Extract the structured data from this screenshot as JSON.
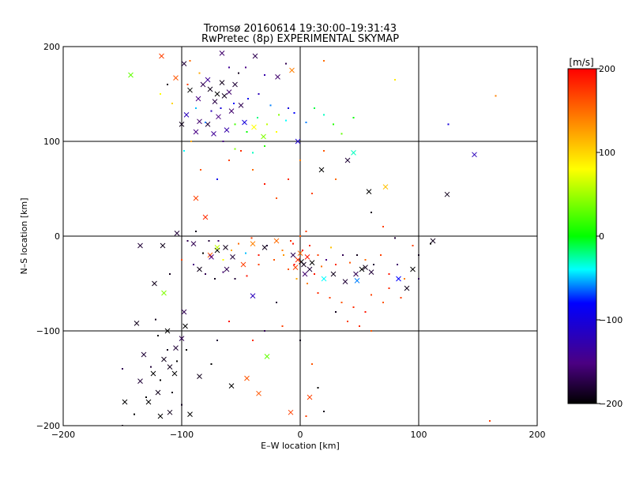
{
  "chart_data": {
    "type": "scatter",
    "title": "Tromsø 20160614 19:30:00–19:31:43",
    "subtitle": "RwPretec (8p) EXPERIMENTAL SKYMAP",
    "xlabel": "E–W location [km]",
    "ylabel": "N–S location [km]",
    "xlim": [
      -200,
      200
    ],
    "ylim": [
      -200,
      200
    ],
    "x_ticks": [
      -200,
      -100,
      0,
      100,
      200
    ],
    "y_ticks": [
      -200,
      -100,
      0,
      100,
      200
    ],
    "x_tick_labels": [
      "−200",
      "−100",
      "0",
      "100",
      "200"
    ],
    "y_tick_labels": [
      "−200",
      "−100",
      "0",
      "100",
      "200"
    ],
    "grid": true,
    "colorbar": {
      "label": "[m/s]",
      "range": [
        -200,
        200
      ],
      "ticks": [
        200,
        100,
        0,
        -100,
        -200
      ],
      "tick_labels": [
        "200",
        "100",
        "0",
        "−100",
        "−200"
      ],
      "colormap": [
        "#000000",
        "#4b0082",
        "#0000ff",
        "#00ffff",
        "#00ff00",
        "#ffff00",
        "#ff8000",
        "#ff0000"
      ]
    },
    "markers": {
      "large": "x",
      "small": "dot"
    },
    "points": [
      [
        -117,
        190,
        170,
        "x"
      ],
      [
        -143,
        170,
        30,
        "x"
      ],
      [
        -105,
        167,
        160,
        "x"
      ],
      [
        -98,
        182,
        -180,
        "x"
      ],
      [
        -66,
        193,
        -160,
        "x"
      ],
      [
        -38,
        190,
        -170,
        "x"
      ],
      [
        -19,
        168,
        -160,
        "x"
      ],
      [
        -7,
        175,
        140,
        "x"
      ],
      [
        -82,
        160,
        -170,
        "x"
      ],
      [
        -76,
        155,
        -190,
        "x"
      ],
      [
        -70,
        150,
        -200,
        "x"
      ],
      [
        -64,
        148,
        -190,
        "x"
      ],
      [
        -72,
        142,
        -175,
        "x"
      ],
      [
        -60,
        152,
        -160,
        "x"
      ],
      [
        -86,
        145,
        -150,
        "x"
      ],
      [
        -55,
        160,
        -180,
        "x"
      ],
      [
        -78,
        165,
        -140,
        "x"
      ],
      [
        -66,
        162,
        -190,
        "x"
      ],
      [
        -96,
        128,
        -120,
        "x"
      ],
      [
        -85,
        121,
        -160,
        "x"
      ],
      [
        -78,
        118,
        -180,
        "x"
      ],
      [
        -69,
        126,
        -150,
        "x"
      ],
      [
        -58,
        132,
        -160,
        "x"
      ],
      [
        -50,
        138,
        -170,
        "x"
      ],
      [
        -88,
        110,
        -150,
        "x"
      ],
      [
        -73,
        108,
        -140,
        "x"
      ],
      [
        -62,
        112,
        -130,
        "x"
      ],
      [
        -47,
        120,
        -100,
        "x"
      ],
      [
        -39,
        115,
        80,
        "x"
      ],
      [
        -31,
        105,
        40,
        "x"
      ],
      [
        -100,
        118,
        -190,
        "x"
      ],
      [
        -93,
        154,
        -200,
        "x"
      ],
      [
        -135,
        -10,
        -180,
        "x"
      ],
      [
        -116,
        -10,
        -190,
        "x"
      ],
      [
        -104,
        3,
        -180,
        "x"
      ],
      [
        -90,
        -8,
        -170,
        "x"
      ],
      [
        -76,
        -20,
        160,
        "x"
      ],
      [
        -70,
        -15,
        -200,
        "x"
      ],
      [
        -63,
        -12,
        -190,
        "x"
      ],
      [
        -57,
        -22,
        -180,
        "x"
      ],
      [
        -48,
        -30,
        170,
        "x"
      ],
      [
        -85,
        -35,
        -190,
        "x"
      ],
      [
        -62,
        -35,
        -170,
        "x"
      ],
      [
        -40,
        -63,
        -120,
        "x"
      ],
      [
        -115,
        -60,
        40,
        "x"
      ],
      [
        -123,
        -50,
        -190,
        "x"
      ],
      [
        -98,
        -80,
        -170,
        "x"
      ],
      [
        -112,
        -100,
        -200,
        "x"
      ],
      [
        -105,
        -118,
        -180,
        "x"
      ],
      [
        -115,
        -130,
        -190,
        "x"
      ],
      [
        -124,
        -145,
        -200,
        "x"
      ],
      [
        -120,
        -165,
        -190,
        "x"
      ],
      [
        -128,
        -175,
        -200,
        "x"
      ],
      [
        -135,
        -153,
        -180,
        "x"
      ],
      [
        -148,
        -175,
        -200,
        "x"
      ],
      [
        -110,
        -186,
        -190,
        "x"
      ],
      [
        -118,
        -190,
        -200,
        "x"
      ],
      [
        -100,
        -108,
        -170,
        "x"
      ],
      [
        -97,
        -95,
        -200,
        "x"
      ],
      [
        -138,
        -92,
        -190,
        "x"
      ],
      [
        -132,
        -125,
        -180,
        "x"
      ],
      [
        -106,
        -145,
        -200,
        "x"
      ],
      [
        1,
        -27,
        -200,
        "x"
      ],
      [
        3,
        -30,
        -190,
        "x"
      ],
      [
        -2,
        -25,
        180,
        "x"
      ],
      [
        6,
        -22,
        190,
        "x"
      ],
      [
        -4,
        -33,
        170,
        "x"
      ],
      [
        8,
        -35,
        -180,
        "x"
      ],
      [
        0,
        -18,
        150,
        "x"
      ],
      [
        10,
        -28,
        -200,
        "x"
      ],
      [
        -6,
        -20,
        -170,
        "x"
      ],
      [
        4,
        -40,
        -160,
        "x"
      ],
      [
        20,
        -45,
        -40,
        "x"
      ],
      [
        28,
        -40,
        -190,
        "x"
      ],
      [
        38,
        -48,
        -180,
        "x"
      ],
      [
        47,
        -40,
        -170,
        "x"
      ],
      [
        52,
        -35,
        -200,
        "x"
      ],
      [
        55,
        -33,
        -190,
        "x"
      ],
      [
        60,
        -38,
        -180,
        "x"
      ],
      [
        48,
        -47,
        -60,
        "x"
      ],
      [
        58,
        47,
        -200,
        "x"
      ],
      [
        72,
        52,
        110,
        "x"
      ],
      [
        124,
        44,
        -190,
        "x"
      ],
      [
        147,
        86,
        -120,
        "x"
      ],
      [
        18,
        70,
        -200,
        "x"
      ],
      [
        40,
        80,
        -180,
        "x"
      ],
      [
        45,
        88,
        -30,
        "x"
      ],
      [
        -2,
        100,
        -110,
        "x"
      ],
      [
        -88,
        40,
        170,
        "x"
      ],
      [
        -80,
        20,
        180,
        "x"
      ],
      [
        -70,
        -12,
        60,
        "x"
      ],
      [
        -75,
        -22,
        -150,
        "x"
      ],
      [
        -40,
        -8,
        140,
        "x"
      ],
      [
        -30,
        -12,
        -190,
        "x"
      ],
      [
        -20,
        -5,
        150,
        "x"
      ],
      [
        -45,
        -150,
        160,
        "x"
      ],
      [
        -35,
        -166,
        160,
        "x"
      ],
      [
        -8,
        -186,
        170,
        "x"
      ],
      [
        -85,
        -148,
        -190,
        "x"
      ],
      [
        -93,
        -188,
        -200,
        "x"
      ],
      [
        -28,
        -127,
        30,
        "x"
      ],
      [
        -58,
        -158,
        -200,
        "x"
      ],
      [
        -110,
        -138,
        -190,
        "x"
      ],
      [
        8,
        -170,
        170,
        "x"
      ],
      [
        83,
        -45,
        -80,
        "x"
      ],
      [
        90,
        -55,
        -190,
        "x"
      ],
      [
        112,
        -5,
        -190,
        "x"
      ],
      [
        95,
        -35,
        -200,
        "x"
      ],
      [
        -93,
        185,
        150,
        "dot"
      ],
      [
        -85,
        172,
        120,
        "dot"
      ],
      [
        -46,
        178,
        -150,
        "dot"
      ],
      [
        -30,
        170,
        -130,
        "dot"
      ],
      [
        -12,
        182,
        -170,
        "dot"
      ],
      [
        -52,
        172,
        -190,
        "dot"
      ],
      [
        -60,
        178,
        -140,
        "dot"
      ],
      [
        -75,
        132,
        -120,
        "dot"
      ],
      [
        -67,
        135,
        -100,
        "dot"
      ],
      [
        -56,
        140,
        -80,
        "dot"
      ],
      [
        -44,
        145,
        -90,
        "dot"
      ],
      [
        -35,
        150,
        -120,
        "dot"
      ],
      [
        -25,
        138,
        -60,
        "dot"
      ],
      [
        -18,
        128,
        40,
        "dot"
      ],
      [
        -10,
        135,
        -100,
        "dot"
      ],
      [
        -55,
        118,
        20,
        "dot"
      ],
      [
        -45,
        110,
        0,
        "dot"
      ],
      [
        -36,
        125,
        -20,
        "dot"
      ],
      [
        -28,
        118,
        60,
        "dot"
      ],
      [
        -20,
        110,
        80,
        "dot"
      ],
      [
        -12,
        122,
        -40,
        "dot"
      ],
      [
        -5,
        130,
        -80,
        "dot"
      ],
      [
        5,
        120,
        -60,
        "dot"
      ],
      [
        12,
        135,
        -10,
        "dot"
      ],
      [
        20,
        128,
        -30,
        "dot"
      ],
      [
        28,
        118,
        10,
        "dot"
      ],
      [
        35,
        108,
        30,
        "dot"
      ],
      [
        45,
        125,
        0,
        "dot"
      ],
      [
        -88,
        135,
        -50,
        "dot"
      ],
      [
        -92,
        100,
        120,
        "dot"
      ],
      [
        -98,
        90,
        -40,
        "dot"
      ],
      [
        -84,
        70,
        160,
        "dot"
      ],
      [
        -70,
        60,
        -90,
        "dot"
      ],
      [
        -60,
        80,
        170,
        "dot"
      ],
      [
        -50,
        90,
        180,
        "dot"
      ],
      [
        -40,
        70,
        150,
        "dot"
      ],
      [
        -30,
        55,
        190,
        "dot"
      ],
      [
        -20,
        40,
        160,
        "dot"
      ],
      [
        -10,
        60,
        180,
        "dot"
      ],
      [
        0,
        80,
        140,
        "dot"
      ],
      [
        10,
        45,
        170,
        "dot"
      ],
      [
        20,
        90,
        160,
        "dot"
      ],
      [
        30,
        60,
        150,
        "dot"
      ],
      [
        -95,
        -5,
        -170,
        "dot"
      ],
      [
        -88,
        5,
        -190,
        "dot"
      ],
      [
        -82,
        -18,
        -200,
        "dot"
      ],
      [
        -77,
        -5,
        -180,
        "dot"
      ],
      [
        -69,
        -5,
        -160,
        "dot"
      ],
      [
        -65,
        -25,
        80,
        "dot"
      ],
      [
        -58,
        -15,
        120,
        "dot"
      ],
      [
        -52,
        -8,
        150,
        "dot"
      ],
      [
        -46,
        -18,
        -50,
        "dot"
      ],
      [
        -41,
        -2,
        170,
        "dot"
      ],
      [
        -35,
        -20,
        190,
        "dot"
      ],
      [
        -28,
        -10,
        -180,
        "dot"
      ],
      [
        -22,
        -25,
        160,
        "dot"
      ],
      [
        -15,
        -15,
        140,
        "dot"
      ],
      [
        -8,
        -5,
        180,
        "dot"
      ],
      [
        -100,
        -25,
        170,
        "dot"
      ],
      [
        -90,
        -30,
        -150,
        "dot"
      ],
      [
        -80,
        -40,
        -170,
        "dot"
      ],
      [
        -72,
        -45,
        -190,
        "dot"
      ],
      [
        -65,
        -38,
        -160,
        "dot"
      ],
      [
        -55,
        -45,
        -180,
        "dot"
      ],
      [
        -45,
        -42,
        190,
        "dot"
      ],
      [
        -35,
        -30,
        170,
        "dot"
      ],
      [
        -5,
        -30,
        200,
        "dot"
      ],
      [
        2,
        -15,
        190,
        "dot"
      ],
      [
        8,
        -10,
        180,
        "dot"
      ],
      [
        15,
        -20,
        170,
        "dot"
      ],
      [
        -10,
        -35,
        160,
        "dot"
      ],
      [
        12,
        -40,
        190,
        "dot"
      ],
      [
        18,
        -32,
        150,
        "dot"
      ],
      [
        -3,
        -45,
        120,
        "dot"
      ],
      [
        6,
        -50,
        140,
        "dot"
      ],
      [
        22,
        -25,
        -150,
        "dot"
      ],
      [
        26,
        -12,
        110,
        "dot"
      ],
      [
        -14,
        -20,
        130,
        "dot"
      ],
      [
        0,
        0,
        160,
        "dot"
      ],
      [
        5,
        5,
        170,
        "dot"
      ],
      [
        -6,
        -8,
        190,
        "dot"
      ],
      [
        30,
        -30,
        180,
        "dot"
      ],
      [
        36,
        -20,
        -170,
        "dot"
      ],
      [
        42,
        -28,
        160,
        "dot"
      ],
      [
        48,
        -20,
        -190,
        "dot"
      ],
      [
        55,
        -25,
        150,
        "dot"
      ],
      [
        62,
        -30,
        -180,
        "dot"
      ],
      [
        68,
        -20,
        170,
        "dot"
      ],
      [
        75,
        -40,
        190,
        "dot"
      ],
      [
        82,
        -30,
        -160,
        "dot"
      ],
      [
        88,
        -45,
        140,
        "dot"
      ],
      [
        95,
        -10,
        170,
        "dot"
      ],
      [
        100,
        -20,
        -190,
        "dot"
      ],
      [
        15,
        -60,
        180,
        "dot"
      ],
      [
        25,
        -65,
        170,
        "dot"
      ],
      [
        35,
        -70,
        160,
        "dot"
      ],
      [
        45,
        -75,
        180,
        "dot"
      ],
      [
        55,
        -80,
        190,
        "dot"
      ],
      [
        60,
        -62,
        170,
        "dot"
      ],
      [
        70,
        -70,
        160,
        "dot"
      ],
      [
        75,
        -55,
        180,
        "dot"
      ],
      [
        85,
        -65,
        170,
        "dot"
      ],
      [
        30,
        -80,
        -190,
        "dot"
      ],
      [
        40,
        -90,
        170,
        "dot"
      ],
      [
        50,
        -95,
        180,
        "dot"
      ],
      [
        60,
        -100,
        160,
        "dot"
      ],
      [
        -120,
        -105,
        -200,
        "dot"
      ],
      [
        -112,
        -120,
        -190,
        "dot"
      ],
      [
        -104,
        -132,
        -200,
        "dot"
      ],
      [
        -126,
        -138,
        -180,
        "dot"
      ],
      [
        -118,
        -152,
        -200,
        "dot"
      ],
      [
        -108,
        -165,
        -190,
        "dot"
      ],
      [
        -130,
        -170,
        -200,
        "dot"
      ],
      [
        -100,
        -178,
        -190,
        "dot"
      ],
      [
        -96,
        -120,
        -200,
        "dot"
      ],
      [
        -122,
        -88,
        -190,
        "dot"
      ],
      [
        -140,
        -188,
        -200,
        "dot"
      ],
      [
        -150,
        -200,
        -190,
        "dot"
      ],
      [
        -150,
        -140,
        -170,
        "dot"
      ],
      [
        -110,
        -40,
        -190,
        "dot"
      ],
      [
        -70,
        -110,
        -180,
        "dot"
      ],
      [
        -60,
        -90,
        190,
        "dot"
      ],
      [
        -75,
        -135,
        -200,
        "dot"
      ],
      [
        -20,
        -70,
        -180,
        "dot"
      ],
      [
        -15,
        -95,
        170,
        "dot"
      ],
      [
        0,
        -110,
        -190,
        "dot"
      ],
      [
        10,
        -135,
        160,
        "dot"
      ],
      [
        -40,
        -110,
        180,
        "dot"
      ],
      [
        15,
        -160,
        -200,
        "dot"
      ],
      [
        20,
        -185,
        -190,
        "dot"
      ],
      [
        5,
        -190,
        170,
        "dot"
      ],
      [
        -30,
        -100,
        -170,
        "dot"
      ],
      [
        60,
        25,
        -190,
        "dot"
      ],
      [
        70,
        10,
        170,
        "dot"
      ],
      [
        80,
        -2,
        -180,
        "dot"
      ],
      [
        110,
        -8,
        -200,
        "dot"
      ],
      [
        125,
        118,
        -100,
        "dot"
      ],
      [
        160,
        -195,
        170,
        "dot"
      ],
      [
        165,
        148,
        140,
        "dot"
      ],
      [
        80,
        165,
        90,
        "dot"
      ],
      [
        20,
        185,
        150,
        "dot"
      ],
      [
        100,
        -45,
        -170,
        "dot"
      ],
      [
        -112,
        160,
        -190,
        "dot"
      ],
      [
        -118,
        150,
        80,
        "dot"
      ],
      [
        -108,
        140,
        100,
        "dot"
      ],
      [
        -95,
        160,
        170,
        "dot"
      ],
      [
        -80,
        120,
        -60,
        "dot"
      ],
      [
        -65,
        100,
        -150,
        "dot"
      ],
      [
        -55,
        92,
        40,
        "dot"
      ],
      [
        -40,
        88,
        -30,
        "dot"
      ],
      [
        -30,
        95,
        10,
        "dot"
      ]
    ]
  }
}
